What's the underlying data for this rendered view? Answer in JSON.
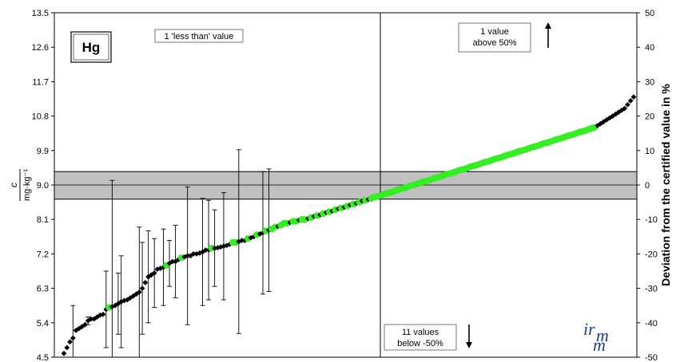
{
  "chart_data": {
    "type": "scatter",
    "element": "Hg",
    "y_left_label_numerator": "c",
    "y_left_label_denominator": "mg·kg⁻¹",
    "y_right_label": "Deviation from the certified value in %",
    "ylim_left": [
      4.5,
      13.5
    ],
    "ylim_right": [
      -50,
      50
    ],
    "yticks_left": [
      "4.5",
      "5.4",
      "6.3",
      "7.2",
      "8.1",
      "9.0",
      "9.9",
      "10.8",
      "11.7",
      "12.6",
      "13.5"
    ],
    "yticks_right": [
      "-50",
      "-40",
      "-30",
      "-20",
      "-10",
      "0",
      "10",
      "20",
      "30",
      "40",
      "50"
    ],
    "certified_value": 9.0,
    "uncertainty_band": [
      8.63,
      9.35
    ],
    "n_results": 190,
    "series": [
      {
        "color": "#000000",
        "marker": "diamond"
      },
      {
        "color": "#33ee22",
        "marker": "circle"
      }
    ],
    "annotations": {
      "less_than": "1 'less than' value",
      "above_line1": "1 value",
      "above_line2": "above 50%",
      "below_line1": "11 values",
      "below_line2": "below -50%"
    },
    "points": [
      [
        4.6,
        0,
        0.0
      ],
      [
        4.75,
        0,
        0.0
      ],
      [
        4.9,
        0,
        0.0
      ],
      [
        5.0,
        0,
        0.85
      ],
      [
        5.2,
        0,
        0.0
      ],
      [
        5.25,
        0,
        0.0
      ],
      [
        5.3,
        0,
        0.0
      ],
      [
        5.35,
        0,
        0.0
      ],
      [
        5.45,
        0,
        0.1
      ],
      [
        5.5,
        0,
        0.0
      ],
      [
        5.5,
        0,
        0.0
      ],
      [
        5.55,
        0,
        0.0
      ],
      [
        5.6,
        0,
        0.0
      ],
      [
        5.62,
        0,
        0.0
      ],
      [
        5.75,
        0,
        1.0
      ],
      [
        5.8,
        1,
        0.0
      ],
      [
        5.82,
        0,
        3.3
      ],
      [
        5.85,
        0,
        0.0
      ],
      [
        5.9,
        0,
        0.8
      ],
      [
        5.95,
        0,
        1.2
      ],
      [
        5.98,
        0,
        0.0
      ],
      [
        6.0,
        0,
        0.0
      ],
      [
        6.05,
        0,
        0.0
      ],
      [
        6.1,
        0,
        0.0
      ],
      [
        6.15,
        0,
        0.0
      ],
      [
        6.2,
        0,
        1.7
      ],
      [
        6.3,
        0,
        1.2
      ],
      [
        6.45,
        0,
        0.0
      ],
      [
        6.6,
        0,
        1.2
      ],
      [
        6.65,
        0,
        0.0
      ],
      [
        6.7,
        0,
        0.9
      ],
      [
        6.8,
        0,
        0.0
      ],
      [
        6.82,
        0,
        0.0
      ],
      [
        6.85,
        0,
        1.0
      ],
      [
        6.9,
        1,
        0.0
      ],
      [
        6.95,
        0,
        0.6
      ],
      [
        7.0,
        0,
        0.0
      ],
      [
        7.0,
        0,
        0.95
      ],
      [
        7.05,
        0,
        0.0
      ],
      [
        7.1,
        1,
        0.0
      ],
      [
        7.12,
        0,
        0.0
      ],
      [
        7.15,
        0,
        1.8
      ],
      [
        7.15,
        0,
        0.0
      ],
      [
        7.2,
        0,
        0.0
      ],
      [
        7.2,
        0,
        0.0
      ],
      [
        7.22,
        0,
        0.0
      ],
      [
        7.25,
        0,
        1.4
      ],
      [
        7.3,
        0,
        0.0
      ],
      [
        7.3,
        0,
        1.3
      ],
      [
        7.35,
        1,
        0.0
      ],
      [
        7.35,
        0,
        1.0
      ],
      [
        7.36,
        0,
        0.0
      ],
      [
        7.38,
        0,
        0.0
      ],
      [
        7.4,
        0,
        1.4
      ],
      [
        7.42,
        0,
        0.0
      ],
      [
        7.45,
        0,
        0.0
      ],
      [
        7.5,
        1,
        0.0
      ],
      [
        7.5,
        1,
        0.0
      ],
      [
        7.52,
        0,
        2.4
      ],
      [
        7.55,
        0,
        0.0
      ],
      [
        7.55,
        0,
        0.0
      ],
      [
        7.6,
        1,
        0.0
      ],
      [
        7.62,
        0,
        0.0
      ],
      [
        7.65,
        0,
        0.0
      ],
      [
        7.7,
        1,
        0.0
      ],
      [
        7.72,
        0,
        0.0
      ],
      [
        7.75,
        0,
        1.6
      ],
      [
        7.8,
        1,
        0.0
      ],
      [
        7.82,
        0,
        1.6
      ],
      [
        7.85,
        1,
        0.0
      ],
      [
        7.9,
        1,
        0.0
      ],
      [
        7.92,
        0,
        0.0
      ],
      [
        7.95,
        1,
        0.0
      ],
      [
        8.0,
        1,
        0.0
      ],
      [
        8.0,
        1,
        0.0
      ],
      [
        8.02,
        0,
        0.0
      ],
      [
        8.05,
        1,
        0.0
      ],
      [
        8.05,
        1,
        0.0
      ],
      [
        8.08,
        0,
        0.0
      ],
      [
        8.1,
        1,
        0.0
      ],
      [
        8.1,
        1,
        0.0
      ],
      [
        8.12,
        0,
        0.0
      ],
      [
        8.15,
        1,
        0.0
      ],
      [
        8.18,
        0,
        0.0
      ],
      [
        8.2,
        1,
        0.0
      ],
      [
        8.22,
        0,
        0.0
      ],
      [
        8.25,
        1,
        0.0
      ],
      [
        8.28,
        0,
        0.0
      ],
      [
        8.3,
        1,
        0.0
      ],
      [
        8.32,
        0,
        0.0
      ],
      [
        8.35,
        1,
        0.0
      ],
      [
        8.38,
        0,
        0.0
      ],
      [
        8.4,
        1,
        0.0
      ],
      [
        8.42,
        0,
        0.0
      ],
      [
        8.45,
        1,
        0.0
      ],
      [
        8.48,
        0,
        0.0
      ],
      [
        8.5,
        1,
        0.0
      ],
      [
        8.52,
        0,
        0.0
      ],
      [
        8.55,
        1,
        0.0
      ],
      [
        8.58,
        0,
        0.0
      ],
      [
        8.6,
        1,
        0.0
      ],
      [
        8.62,
        0,
        0.0
      ],
      [
        8.65,
        1,
        0.0
      ],
      [
        8.68,
        1,
        0.0
      ],
      [
        8.7,
        1,
        0.0
      ],
      [
        8.72,
        1,
        0.0
      ],
      [
        8.75,
        1,
        0.0
      ],
      [
        8.78,
        1,
        0.0
      ],
      [
        8.8,
        1,
        0.0
      ],
      [
        8.82,
        1,
        0.0
      ],
      [
        8.85,
        1,
        0.0
      ],
      [
        8.88,
        1,
        0.0
      ],
      [
        8.9,
        1,
        0.0
      ],
      [
        8.92,
        1,
        0.0
      ],
      [
        8.95,
        1,
        0.0
      ],
      [
        8.98,
        1,
        0.0
      ],
      [
        9.0,
        1,
        0.0
      ],
      [
        9.02,
        1,
        0.0
      ],
      [
        9.05,
        1,
        0.0
      ],
      [
        9.08,
        1,
        0.0
      ],
      [
        9.1,
        1,
        0.0
      ],
      [
        9.12,
        1,
        0.0
      ],
      [
        9.15,
        1,
        0.0
      ],
      [
        9.18,
        1,
        0.0
      ],
      [
        9.2,
        1,
        0.0
      ],
      [
        9.22,
        1,
        0.0
      ],
      [
        9.25,
        1,
        0.0
      ],
      [
        9.28,
        1,
        0.0
      ],
      [
        9.3,
        1,
        0.0
      ],
      [
        9.32,
        1,
        0.0
      ],
      [
        9.35,
        1,
        0.0
      ],
      [
        9.38,
        1,
        0.0
      ],
      [
        9.4,
        1,
        0.0
      ],
      [
        9.42,
        1,
        0.0
      ],
      [
        9.45,
        1,
        0.0
      ],
      [
        9.48,
        1,
        0.0
      ],
      [
        9.5,
        1,
        0.0
      ],
      [
        9.52,
        1,
        0.0
      ],
      [
        9.55,
        1,
        0.0
      ],
      [
        9.58,
        1,
        0.0
      ],
      [
        9.6,
        1,
        0.0
      ],
      [
        9.62,
        1,
        0.0
      ],
      [
        9.65,
        1,
        0.0
      ],
      [
        9.68,
        1,
        0.0
      ],
      [
        9.7,
        1,
        0.0
      ],
      [
        9.72,
        1,
        0.0
      ],
      [
        9.75,
        1,
        0.0
      ],
      [
        9.78,
        1,
        0.0
      ],
      [
        9.8,
        1,
        0.0
      ],
      [
        9.82,
        1,
        0.0
      ],
      [
        9.85,
        1,
        0.0
      ],
      [
        9.88,
        1,
        0.0
      ],
      [
        9.9,
        1,
        0.0
      ],
      [
        9.92,
        1,
        0.0
      ],
      [
        9.95,
        1,
        0.0
      ],
      [
        9.98,
        1,
        0.0
      ],
      [
        10.0,
        1,
        0.0
      ],
      [
        10.02,
        1,
        0.0
      ],
      [
        10.05,
        1,
        0.0
      ],
      [
        10.08,
        1,
        0.0
      ],
      [
        10.1,
        1,
        0.0
      ],
      [
        10.12,
        1,
        0.0
      ],
      [
        10.15,
        1,
        0.0
      ],
      [
        10.18,
        1,
        0.0
      ],
      [
        10.2,
        1,
        0.0
      ],
      [
        10.22,
        1,
        0.0
      ],
      [
        10.25,
        1,
        0.0
      ],
      [
        10.28,
        1,
        0.0
      ],
      [
        10.3,
        1,
        0.0
      ],
      [
        10.32,
        1,
        0.0
      ],
      [
        10.35,
        1,
        0.0
      ],
      [
        10.38,
        1,
        0.0
      ],
      [
        10.4,
        1,
        0.0
      ],
      [
        10.42,
        1,
        0.0
      ],
      [
        10.45,
        1,
        0.0
      ],
      [
        10.48,
        1,
        0.0
      ],
      [
        10.5,
        1,
        0.0
      ],
      [
        10.55,
        0,
        0.0
      ],
      [
        10.6,
        0,
        0.0
      ],
      [
        10.65,
        0,
        0.0
      ],
      [
        10.7,
        0,
        0.0
      ],
      [
        10.75,
        0,
        0.0
      ],
      [
        10.8,
        0,
        0.0
      ],
      [
        10.85,
        0,
        0.0
      ],
      [
        10.9,
        0,
        0.0
      ],
      [
        10.95,
        0,
        0.0
      ],
      [
        11.0,
        0,
        0.0
      ],
      [
        11.1,
        0,
        0.0
      ],
      [
        11.2,
        0,
        0.0
      ],
      [
        11.3,
        0,
        0.0
      ]
    ]
  }
}
